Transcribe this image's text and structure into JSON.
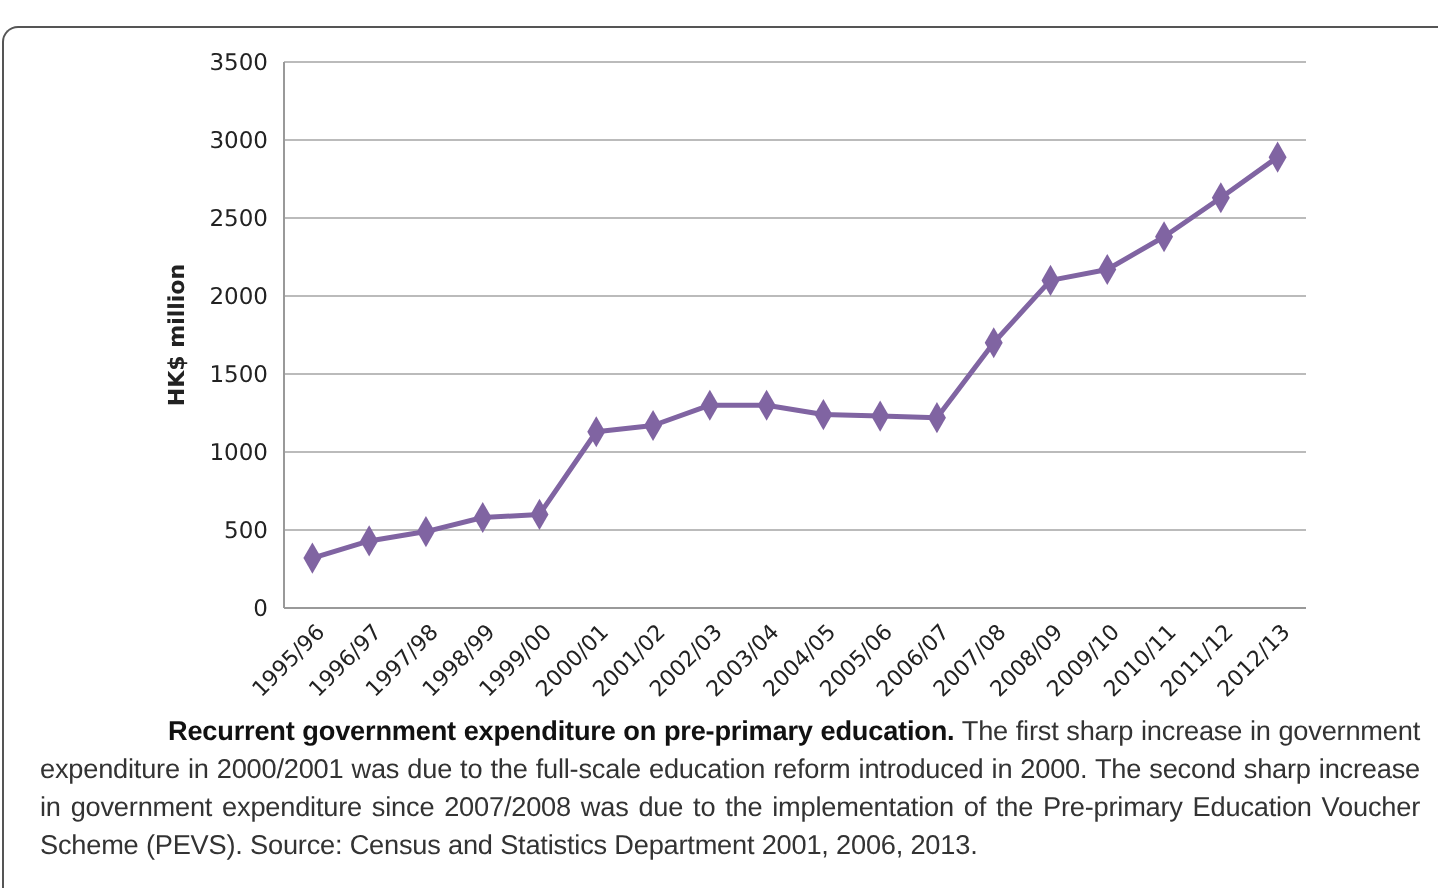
{
  "chart_data": {
    "type": "line",
    "title": "Recurrent government expenditure on pre-primary education.",
    "ylabel": "HK$ million",
    "categories": [
      "1995/96",
      "1996/97",
      "1997/98",
      "1998/99",
      "1999/00",
      "2000/01",
      "2001/02",
      "2002/03",
      "2003/04",
      "2004/05",
      "2005/06",
      "2006/07",
      "2007/08",
      "2008/09",
      "2009/10",
      "2010/11",
      "2011/12",
      "2012/13"
    ],
    "series": [
      {
        "color": "#8064a2",
        "values": [
          320,
          430,
          490,
          580,
          600,
          1130,
          1170,
          1300,
          1300,
          1240,
          1230,
          1220,
          1700,
          2100,
          2170,
          2380,
          2630,
          2890
        ]
      }
    ],
    "ylim": [
      0,
      3500
    ],
    "yticks": [
      0,
      500,
      1000,
      1500,
      2000,
      2500,
      3000,
      3500
    ],
    "grid": "y",
    "marker": "diamond",
    "line_style": "solid",
    "annotations": [
      "The first sharp increase in government expenditure in 2000/2001 was due to the full-scale education reform introduced in 2000. The second sharp increase in government expenditure since 2007/2008 was due to the implementation of the Pre-primary Education Voucher Scheme (PEVS). Source: Census and Statistics Department 2001, 2006, 2013."
    ]
  }
}
